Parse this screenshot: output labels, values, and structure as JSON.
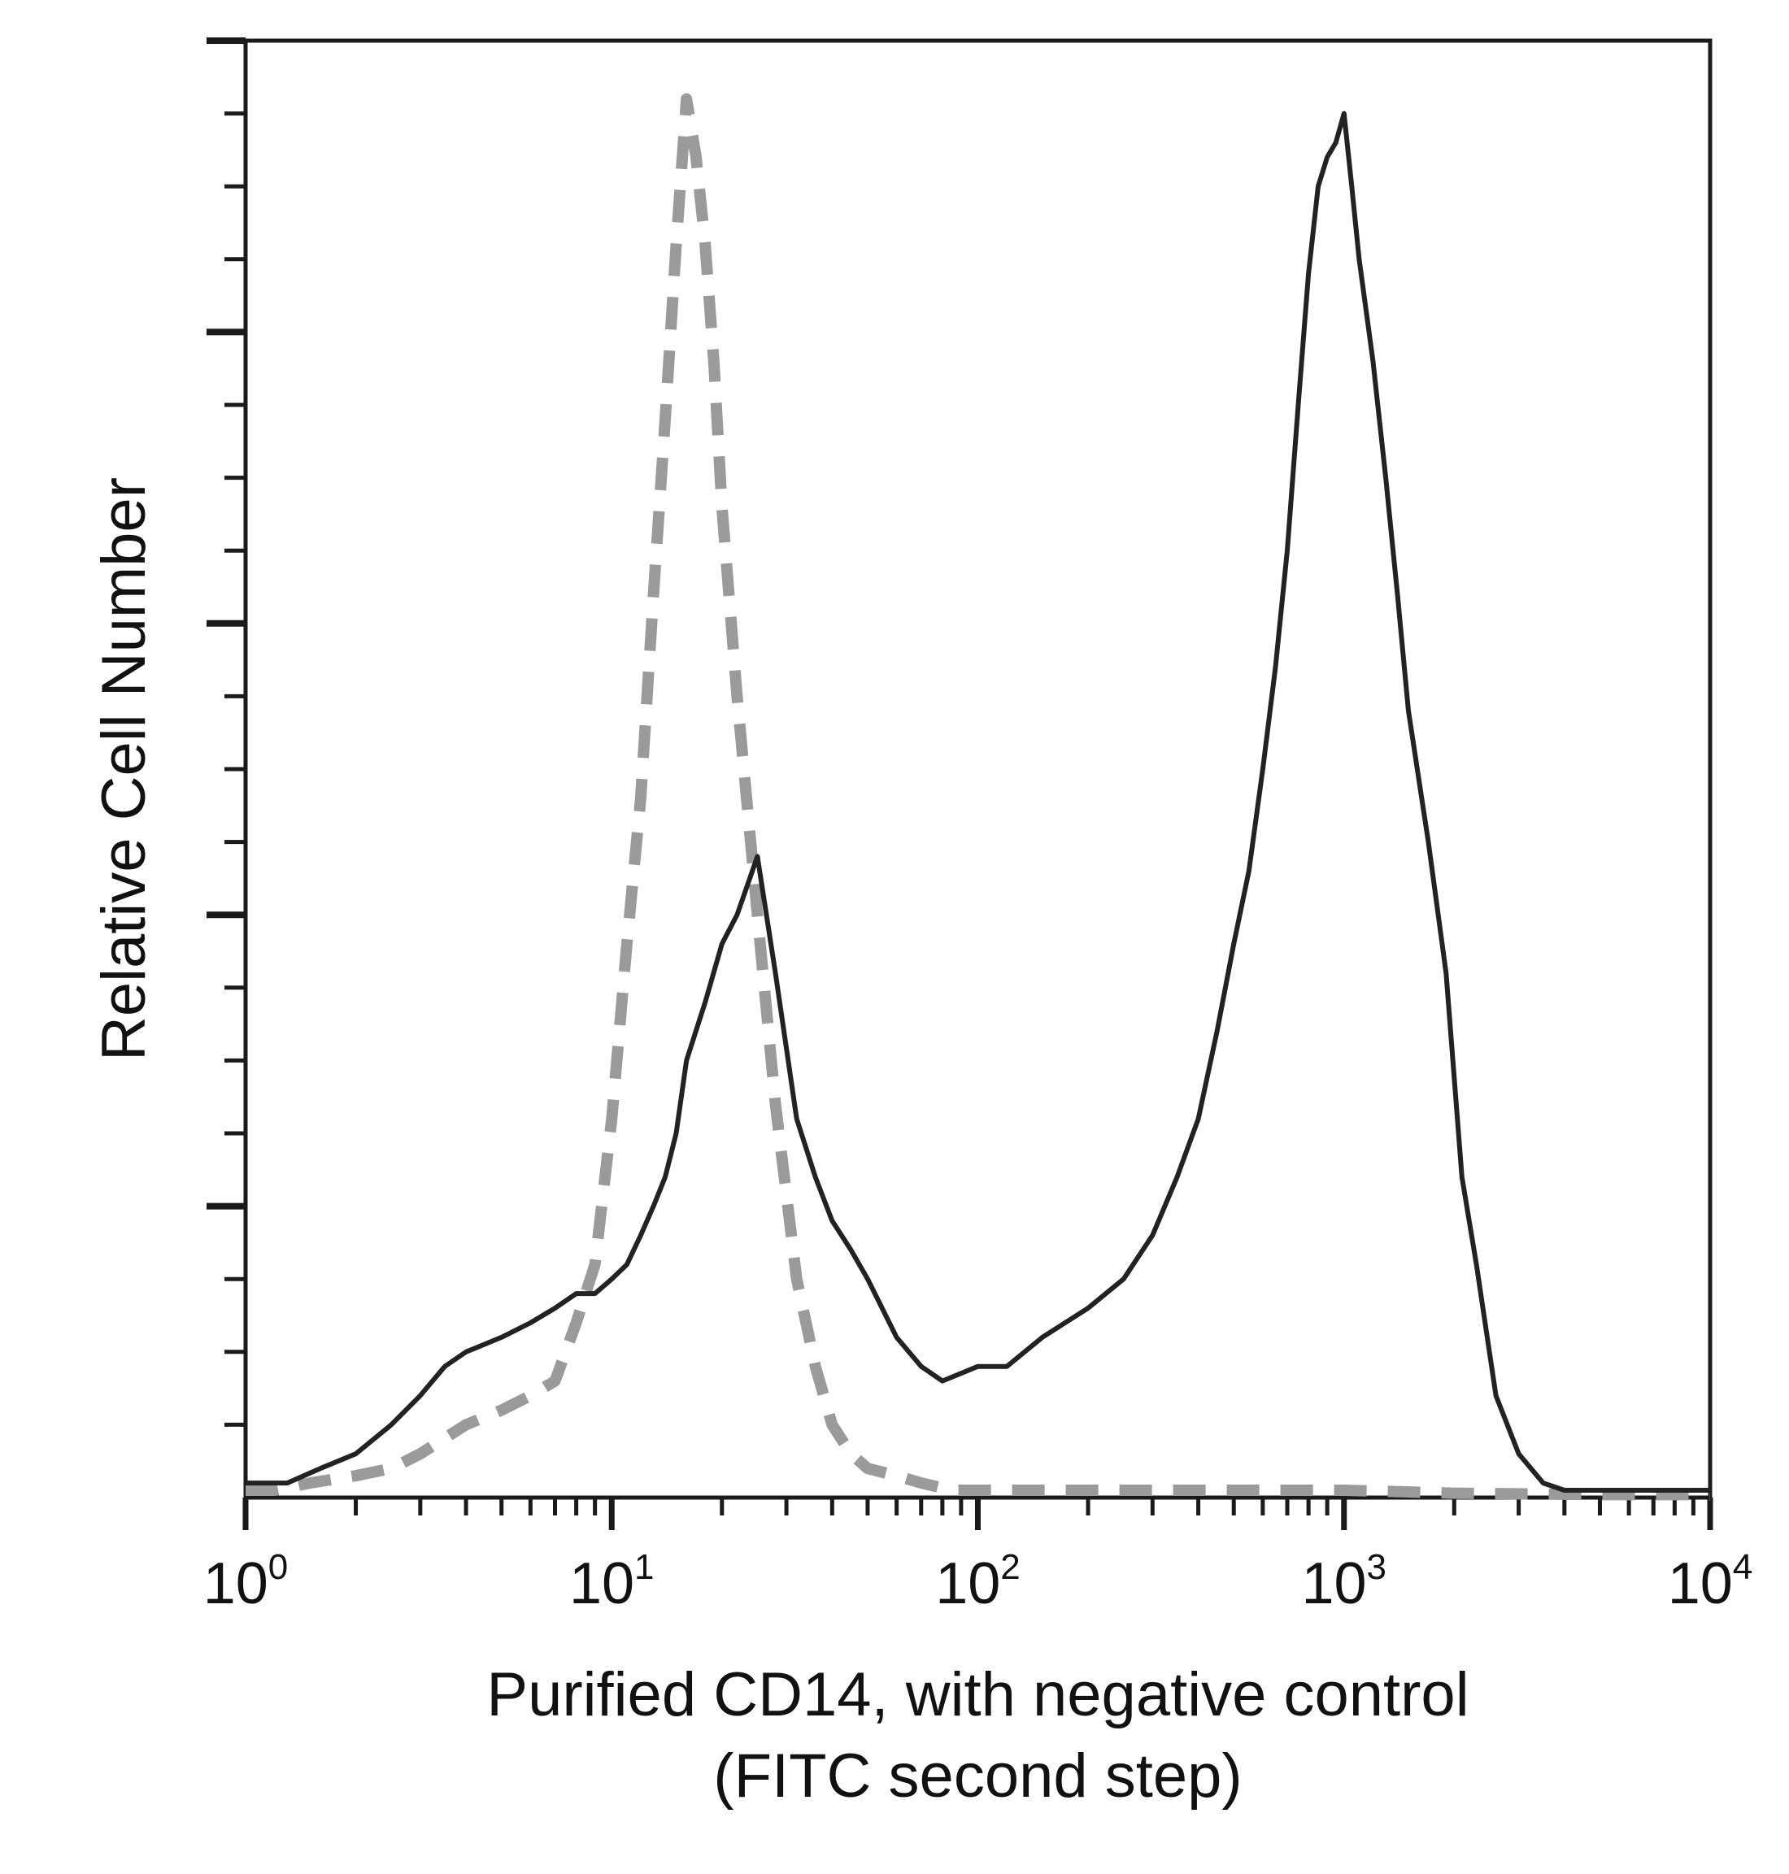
{
  "chart_data": {
    "type": "line",
    "title": "",
    "xlabel_lines": [
      "Purified CD14, with negative control",
      "(FITC second step)"
    ],
    "ylabel": "Relative Cell Number",
    "xscale": "log",
    "xlim": [
      1,
      10000
    ],
    "ylim": [
      0,
      100
    ],
    "grid": false,
    "legend": "none",
    "x_tick_labels": [
      {
        "value": 1,
        "base": "10",
        "exp": "0"
      },
      {
        "value": 10,
        "base": "10",
        "exp": "1"
      },
      {
        "value": 100,
        "base": "10",
        "exp": "2"
      },
      {
        "value": 1000,
        "base": "10",
        "exp": "3"
      },
      {
        "value": 10000,
        "base": "10",
        "exp": "4"
      }
    ],
    "y_ticks_unlabeled": {
      "major_step": 20,
      "minor_step": 5
    },
    "series": [
      {
        "style": "dashed",
        "color": "#9a9a9a",
        "x": [
          1,
          1.2,
          1.5,
          2,
          2.5,
          3,
          4,
          5,
          6,
          7,
          8,
          9,
          10,
          11,
          12,
          13,
          14,
          15,
          16,
          17,
          18,
          19,
          20,
          22,
          25,
          28,
          32,
          36,
          40,
          45,
          50,
          60,
          70,
          85,
          100,
          150,
          200,
          500,
          1000,
          2000,
          5000,
          10000
        ],
        "y": [
          0.5,
          0.5,
          1,
          1.5,
          2,
          3,
          5,
          6,
          7,
          8,
          12,
          16,
          26,
          38,
          48,
          62,
          74,
          86,
          96,
          92,
          86,
          78,
          68,
          55,
          40,
          27,
          15,
          9,
          5,
          3,
          2,
          1.5,
          1,
          0.5,
          0.5,
          0.5,
          0.5,
          0.5,
          0.5,
          0.3,
          0.2,
          0.2
        ]
      },
      {
        "style": "solid",
        "color": "#222222",
        "x": [
          1,
          1.3,
          1.6,
          2,
          2.5,
          3,
          3.5,
          4,
          5,
          6,
          7,
          8,
          9,
          10,
          11,
          12,
          13,
          14,
          15,
          16,
          18,
          20,
          22,
          25,
          28,
          32,
          36,
          40,
          45,
          50,
          60,
          70,
          80,
          100,
          120,
          150,
          200,
          250,
          300,
          350,
          400,
          450,
          500,
          550,
          600,
          650,
          700,
          750,
          800,
          850,
          900,
          950,
          1000,
          1050,
          1100,
          1200,
          1300,
          1400,
          1500,
          1700,
          1900,
          2100,
          2300,
          2600,
          3000,
          3500,
          4000,
          5000,
          7000,
          10000
        ],
        "y": [
          1,
          1,
          2,
          3,
          5,
          7,
          9,
          10,
          11,
          12,
          13,
          14,
          14,
          15,
          16,
          18,
          20,
          22,
          25,
          30,
          34,
          38,
          40,
          44,
          36,
          26,
          22,
          19,
          17,
          15,
          11,
          9,
          8,
          9,
          9,
          11,
          13,
          15,
          18,
          22,
          26,
          32,
          38,
          43,
          50,
          57,
          65,
          75,
          84,
          90,
          92,
          93,
          95,
          90,
          85,
          78,
          70,
          62,
          54,
          45,
          36,
          22,
          16,
          7,
          3,
          1,
          0.5,
          0.5,
          0.5,
          0.5
        ]
      }
    ]
  }
}
